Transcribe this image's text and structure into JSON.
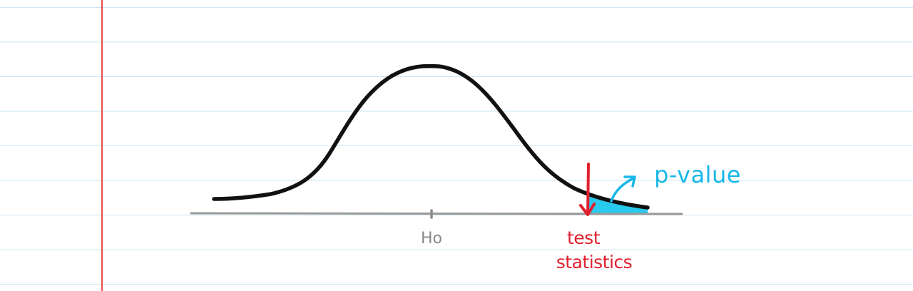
{
  "labels": {
    "mean": "Ho",
    "test_statistic_line1": "test",
    "test_statistic_line2": "statistics",
    "p_value": "p-value"
  },
  "colors": {
    "paper": "#ffffff",
    "ruled_line": "#cfe4f1",
    "margin_line": "#e02424",
    "curve": "#111111",
    "axis": "#9a9a9a",
    "mean_label": "#8a8a8a",
    "test_statistic": "#e0202e",
    "p_value": "#17b8e8",
    "p_value_fill": "#1cc7ec"
  }
}
